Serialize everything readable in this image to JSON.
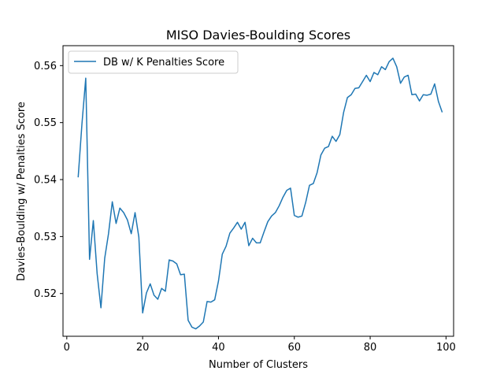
{
  "chart_data": {
    "type": "line",
    "title": "MISO Davies-Boulding Scores",
    "xlabel": "Number of Clusters",
    "ylabel": "Davies-Boulding w/ Penalties Score",
    "xlim": [
      -1,
      102
    ],
    "ylim": [
      0.5125,
      0.5635
    ],
    "xticks": [
      0,
      20,
      40,
      60,
      80,
      100
    ],
    "yticks": [
      0.52,
      0.53,
      0.54,
      0.55,
      0.56
    ],
    "ytick_labels": [
      "0.52",
      "0.53",
      "0.54",
      "0.55",
      "0.56"
    ],
    "legend": "upper left",
    "color": "#1f77b4",
    "series": [
      {
        "name": "DB w/ K Penalties Score",
        "x": [
          3,
          4,
          5,
          6,
          7,
          8,
          9,
          10,
          11,
          12,
          13,
          14,
          15,
          16,
          17,
          18,
          19,
          20,
          21,
          22,
          23,
          24,
          25,
          26,
          27,
          28,
          29,
          30,
          31,
          32,
          33,
          34,
          35,
          36,
          37,
          38,
          39,
          40,
          41,
          42,
          43,
          44,
          45,
          46,
          47,
          48,
          49,
          50,
          51,
          52,
          53,
          54,
          55,
          56,
          57,
          58,
          59,
          60,
          61,
          62,
          63,
          64,
          65,
          66,
          67,
          68,
          69,
          70,
          71,
          72,
          73,
          74,
          75,
          76,
          77,
          78,
          79,
          80,
          81,
          82,
          83,
          84,
          85,
          86,
          87,
          88,
          89,
          90,
          91,
          92,
          93,
          94,
          95,
          96,
          97,
          98,
          99
        ],
        "values": [
          0.5404,
          0.5498,
          0.5578,
          0.526,
          0.5328,
          0.5235,
          0.5175,
          0.5262,
          0.5305,
          0.5361,
          0.5323,
          0.535,
          0.5342,
          0.5329,
          0.5305,
          0.5342,
          0.5299,
          0.5166,
          0.5201,
          0.5217,
          0.5197,
          0.519,
          0.5209,
          0.5204,
          0.5259,
          0.5257,
          0.5252,
          0.5233,
          0.5234,
          0.5153,
          0.5141,
          0.5138,
          0.5143,
          0.515,
          0.5186,
          0.5185,
          0.5189,
          0.5222,
          0.5269,
          0.5283,
          0.5306,
          0.5315,
          0.5325,
          0.5313,
          0.5325,
          0.5284,
          0.5297,
          0.5289,
          0.5289,
          0.5308,
          0.5326,
          0.5336,
          0.5342,
          0.5354,
          0.5369,
          0.5381,
          0.5385,
          0.5337,
          0.5334,
          0.5336,
          0.536,
          0.539,
          0.5393,
          0.5412,
          0.5443,
          0.5455,
          0.5458,
          0.5476,
          0.5467,
          0.5479,
          0.5518,
          0.5544,
          0.5549,
          0.556,
          0.5561,
          0.5572,
          0.5583,
          0.5572,
          0.5588,
          0.5584,
          0.5598,
          0.5593,
          0.5607,
          0.5613,
          0.5598,
          0.5569,
          0.558,
          0.5583,
          0.5549,
          0.555,
          0.5538,
          0.5549,
          0.5548,
          0.555,
          0.5568,
          0.5537,
          0.5518
        ]
      }
    ]
  }
}
